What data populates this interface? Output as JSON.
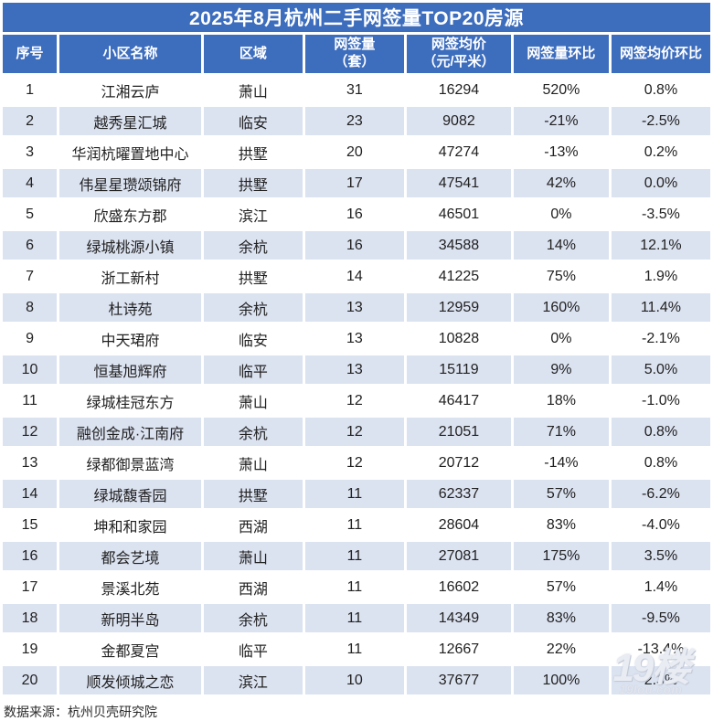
{
  "title": "2025年8月杭州二手网签量TOP20房源",
  "source_note": "数据来源：杭州贝壳研究院",
  "watermark": {
    "line1": "19楼",
    "line2": "19lou.com"
  },
  "colors": {
    "header_blue": "#3d6dbd",
    "stripe_blue": "#dbe2f0",
    "text_dark": "#212121"
  },
  "header_display": [
    {
      "l1": "序号",
      "l2": ""
    },
    {
      "l1": "小区名称",
      "l2": ""
    },
    {
      "l1": "区域",
      "l2": ""
    },
    {
      "l1": "网签量",
      "l2": "（套）"
    },
    {
      "l1": "网签均价",
      "l2": "（元/平米）"
    },
    {
      "l1": "网签量环比",
      "l2": ""
    },
    {
      "l1": "网签均价环比",
      "l2": ""
    }
  ],
  "chart_data": {
    "type": "table",
    "title": "2025年8月杭州二手网签量TOP20房源",
    "columns": [
      "序号",
      "小区名称",
      "区域",
      "网签量（套）",
      "网签均价（元/平米）",
      "网签量环比",
      "网签均价环比"
    ],
    "source": "数据来源：杭州贝壳研究院",
    "rows": [
      {
        "rank": "1",
        "name": "江湘云庐",
        "district": "萧山",
        "volume": "31",
        "avg_price": "16294",
        "volume_mom": "520%",
        "price_mom": "0.8%"
      },
      {
        "rank": "2",
        "name": "越秀星汇城",
        "district": "临安",
        "volume": "23",
        "avg_price": "9082",
        "volume_mom": "-21%",
        "price_mom": "-2.5%"
      },
      {
        "rank": "3",
        "name": "华润杭曜置地中心",
        "district": "拱墅",
        "volume": "20",
        "avg_price": "47274",
        "volume_mom": "-13%",
        "price_mom": "0.2%"
      },
      {
        "rank": "4",
        "name": "伟星星瓒颂锦府",
        "district": "拱墅",
        "volume": "17",
        "avg_price": "47541",
        "volume_mom": "42%",
        "price_mom": "0.0%"
      },
      {
        "rank": "5",
        "name": "欣盛东方郡",
        "district": "滨江",
        "volume": "16",
        "avg_price": "46501",
        "volume_mom": "0%",
        "price_mom": "-3.5%"
      },
      {
        "rank": "6",
        "name": "绿城桃源小镇",
        "district": "余杭",
        "volume": "16",
        "avg_price": "34588",
        "volume_mom": "14%",
        "price_mom": "12.1%"
      },
      {
        "rank": "7",
        "name": "浙工新村",
        "district": "拱墅",
        "volume": "14",
        "avg_price": "41225",
        "volume_mom": "75%",
        "price_mom": "1.9%"
      },
      {
        "rank": "8",
        "name": "杜诗苑",
        "district": "余杭",
        "volume": "13",
        "avg_price": "12959",
        "volume_mom": "160%",
        "price_mom": "11.4%"
      },
      {
        "rank": "9",
        "name": "中天珺府",
        "district": "临安",
        "volume": "13",
        "avg_price": "10828",
        "volume_mom": "0%",
        "price_mom": "-2.1%"
      },
      {
        "rank": "10",
        "name": "恒基旭辉府",
        "district": "临平",
        "volume": "13",
        "avg_price": "15119",
        "volume_mom": "9%",
        "price_mom": "5.0%"
      },
      {
        "rank": "11",
        "name": "绿城桂冠东方",
        "district": "萧山",
        "volume": "12",
        "avg_price": "46417",
        "volume_mom": "18%",
        "price_mom": "-1.0%"
      },
      {
        "rank": "12",
        "name": "融创金成·江南府",
        "district": "余杭",
        "volume": "12",
        "avg_price": "21051",
        "volume_mom": "71%",
        "price_mom": "0.8%"
      },
      {
        "rank": "13",
        "name": "绿都御景蓝湾",
        "district": "萧山",
        "volume": "12",
        "avg_price": "20712",
        "volume_mom": "-14%",
        "price_mom": "0.8%"
      },
      {
        "rank": "14",
        "name": "绿城馥香园",
        "district": "拱墅",
        "volume": "11",
        "avg_price": "62337",
        "volume_mom": "57%",
        "price_mom": "-6.2%"
      },
      {
        "rank": "15",
        "name": "坤和和家园",
        "district": "西湖",
        "volume": "11",
        "avg_price": "28604",
        "volume_mom": "83%",
        "price_mom": "-4.0%"
      },
      {
        "rank": "16",
        "name": "都会艺境",
        "district": "萧山",
        "volume": "11",
        "avg_price": "27081",
        "volume_mom": "175%",
        "price_mom": "3.5%"
      },
      {
        "rank": "17",
        "name": "景溪北苑",
        "district": "西湖",
        "volume": "11",
        "avg_price": "16602",
        "volume_mom": "57%",
        "price_mom": "1.4%"
      },
      {
        "rank": "18",
        "name": "新明半岛",
        "district": "余杭",
        "volume": "11",
        "avg_price": "14349",
        "volume_mom": "83%",
        "price_mom": "-9.5%"
      },
      {
        "rank": "19",
        "name": "金都夏宫",
        "district": "临平",
        "volume": "11",
        "avg_price": "12667",
        "volume_mom": "22%",
        "price_mom": "-13.4%"
      },
      {
        "rank": "20",
        "name": "顺发倾城之恋",
        "district": "滨江",
        "volume": "10",
        "avg_price": "37677",
        "volume_mom": "100%",
        "price_mom": "2.3%"
      }
    ]
  }
}
